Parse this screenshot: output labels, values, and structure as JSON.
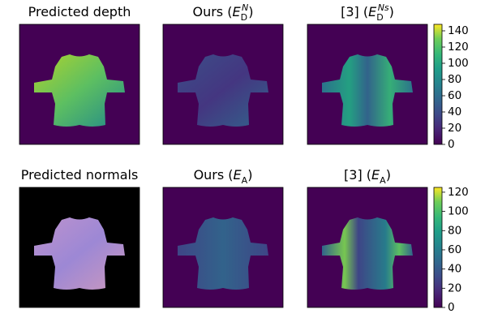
{
  "panels": [
    {
      "title": {
        "text": "Predicted depth"
      }
    },
    {
      "title": {
        "prefix": "Ours (",
        "symbol": "E",
        "sub": "D",
        "sup": "N",
        "suffix": ")"
      }
    },
    {
      "title": {
        "prefix": "[3] (",
        "symbol": "E",
        "sub": "D",
        "sup": "Ns",
        "suffix": ")"
      }
    },
    {
      "title": {
        "text": "Predicted normals"
      }
    },
    {
      "title": {
        "prefix": "Ours (",
        "symbol": "E",
        "sub": "A",
        "suffix": ")"
      }
    },
    {
      "title": {
        "prefix": "[3] (",
        "symbol": "E",
        "sub": "A",
        "suffix": ")"
      }
    }
  ],
  "colorbars": [
    {
      "lim": [
        0,
        148
      ],
      "ticks": [
        0,
        20,
        40,
        60,
        80,
        100,
        120,
        140
      ]
    },
    {
      "lim": [
        0,
        125
      ],
      "ticks": [
        0,
        20,
        40,
        60,
        80,
        100,
        120
      ]
    }
  ]
}
